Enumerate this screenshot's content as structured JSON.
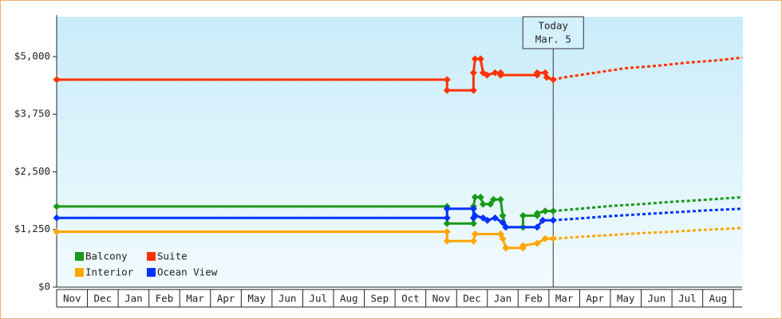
{
  "chart_data": {
    "type": "line",
    "annotation": {
      "lines": [
        "Today",
        "Mar. 5"
      ],
      "x": 16.14
    },
    "categories": [
      "Nov",
      "Dec",
      "Jan",
      "Feb",
      "Mar",
      "Apr",
      "May",
      "Jun",
      "Jul",
      "Aug",
      "Sep",
      "Oct",
      "Nov",
      "Dec",
      "Jan",
      "Feb",
      "Mar",
      "Apr",
      "May",
      "Jun",
      "Jul",
      "Aug"
    ],
    "xlim": [
      0,
      22.28
    ],
    "ylim": [
      0,
      5865
    ],
    "yticks": [
      {
        "value": 0,
        "label": "$0"
      },
      {
        "value": 1250,
        "label": "$1,250"
      },
      {
        "value": 2500,
        "label": "$2,500"
      },
      {
        "value": 3750,
        "label": "$3,750"
      },
      {
        "value": 5000,
        "label": "$5,000"
      }
    ],
    "series": [
      {
        "name": "Balcony",
        "color": "#1a9a1a",
        "x": [
          0,
          12.69,
          12.69,
          13.55,
          13.55,
          13.6,
          13.78,
          13.86,
          14.1,
          14.2,
          14.43,
          14.5,
          14.6,
          15.16,
          15.16,
          15.62,
          15.62,
          15.88,
          16.14
        ],
        "values": [
          1750,
          1750,
          1380,
          1380,
          1750,
          1950,
          1950,
          1800,
          1800,
          1900,
          1900,
          1550,
          1300,
          1300,
          1550,
          1550,
          1600,
          1650,
          1650
        ],
        "forecast_x": [
          16.14,
          17,
          18,
          19,
          20,
          21,
          22.28
        ],
        "forecast_values": [
          1650,
          1700,
          1760,
          1800,
          1850,
          1890,
          1950
        ]
      },
      {
        "name": "Suite",
        "color": "#ff3300",
        "x": [
          0,
          12.69,
          12.69,
          13.55,
          13.55,
          13.6,
          13.78,
          13.86,
          13.99,
          14.25,
          14.43,
          14.43,
          15.62,
          15.62,
          15.88,
          15.93,
          16.14
        ],
        "values": [
          4500,
          4500,
          4270,
          4270,
          4650,
          4950,
          4950,
          4650,
          4600,
          4650,
          4650,
          4600,
          4600,
          4650,
          4650,
          4550,
          4500
        ],
        "forecast_x": [
          16.14,
          16.5,
          17.5,
          18.5,
          19.5,
          20.5,
          21.5,
          22.28
        ],
        "forecast_values": [
          4500,
          4550,
          4650,
          4750,
          4800,
          4870,
          4920,
          4980
        ]
      },
      {
        "name": "Interior",
        "color": "#ffa500",
        "x": [
          0,
          12.69,
          12.69,
          13.55,
          13.6,
          14.43,
          14.5,
          14.6,
          15.16,
          15.16,
          15.62,
          15.88,
          16.14
        ],
        "values": [
          1200,
          1200,
          1000,
          1000,
          1150,
          1150,
          1050,
          850,
          850,
          900,
          950,
          1050,
          1050
        ],
        "forecast_x": [
          16.14,
          17,
          18,
          19,
          20,
          21,
          22.28
        ],
        "forecast_values": [
          1050,
          1090,
          1130,
          1170,
          1200,
          1240,
          1280
        ]
      },
      {
        "name": "Ocean View",
        "color": "#0033ff",
        "x": [
          0,
          12.69,
          12.69,
          13.55,
          13.55,
          13.6,
          13.86,
          14.0,
          14.25,
          14.5,
          14.6,
          15.62,
          15.8,
          16.14
        ],
        "values": [
          1500,
          1500,
          1700,
          1700,
          1500,
          1550,
          1500,
          1450,
          1500,
          1400,
          1300,
          1300,
          1450,
          1450
        ],
        "forecast_x": [
          16.14,
          17,
          18,
          19,
          20,
          21,
          22.28
        ],
        "forecast_values": [
          1450,
          1490,
          1540,
          1580,
          1620,
          1660,
          1700
        ]
      }
    ]
  }
}
